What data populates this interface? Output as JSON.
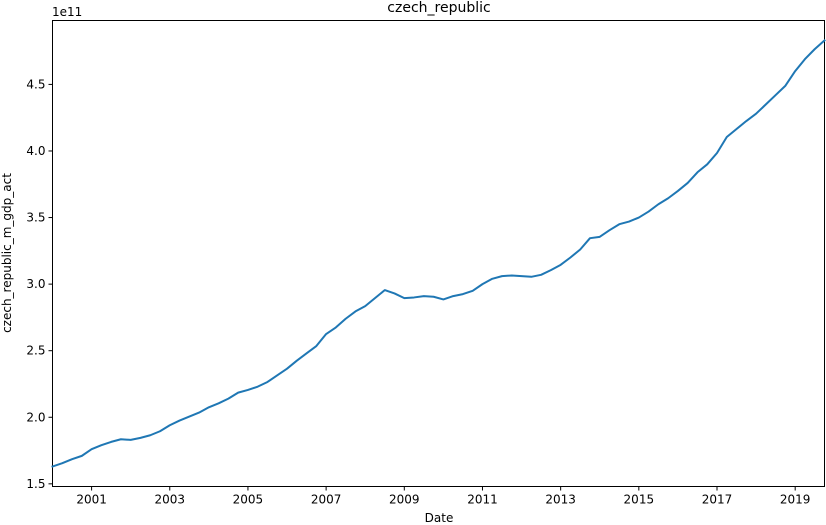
{
  "chart_data": {
    "type": "line",
    "title": "czech_republic",
    "xlabel": "Date",
    "ylabel": "czech_republic_m_gdp_act",
    "y_offset_label": "1e11",
    "y_multiplier": 100000000000.0,
    "xlim": [
      2000.0,
      2019.75
    ],
    "ylim": [
      1.48,
      4.98
    ],
    "x_ticks": [
      2001,
      2003,
      2005,
      2007,
      2009,
      2011,
      2013,
      2015,
      2017,
      2019
    ],
    "y_ticks": [
      1.5,
      2.0,
      2.5,
      3.0,
      3.5,
      4.0,
      4.5
    ],
    "y_tick_labels": [
      "1.5",
      "2.0",
      "2.5",
      "3.0",
      "3.5",
      "4.0",
      "4.5"
    ],
    "grid": false,
    "color": "#1f77b4",
    "series": [
      {
        "x": [
          2000.0,
          2000.25,
          2000.5,
          2000.75,
          2001.0,
          2001.25,
          2001.5,
          2001.75,
          2002.0,
          2002.25,
          2002.5,
          2002.75,
          2003.0,
          2003.25,
          2003.5,
          2003.75,
          2004.0,
          2004.25,
          2004.5,
          2004.75,
          2005.0,
          2005.25,
          2005.5,
          2005.75,
          2006.0,
          2006.25,
          2006.5,
          2006.75,
          2007.0,
          2007.25,
          2007.5,
          2007.75,
          2008.0,
          2008.25,
          2008.5,
          2008.75,
          2009.0,
          2009.25,
          2009.5,
          2009.75,
          2010.0,
          2010.25,
          2010.5,
          2010.75,
          2011.0,
          2011.25,
          2011.5,
          2011.75,
          2012.0,
          2012.25,
          2012.5,
          2012.75,
          2013.0,
          2013.25,
          2013.5,
          2013.75,
          2014.0,
          2014.25,
          2014.5,
          2014.75,
          2015.0,
          2015.25,
          2015.5,
          2015.75,
          2016.0,
          2016.25,
          2016.5,
          2016.75,
          2017.0,
          2017.25,
          2017.5,
          2017.75,
          2018.0,
          2018.25,
          2018.5,
          2018.75,
          2019.0,
          2019.25,
          2019.5,
          2019.75
        ],
        "values": [
          1.63,
          1.655,
          1.685,
          1.71,
          1.76,
          1.79,
          1.815,
          1.835,
          1.83,
          1.845,
          1.865,
          1.895,
          1.94,
          1.975,
          2.005,
          2.035,
          2.075,
          2.105,
          2.14,
          2.185,
          2.205,
          2.23,
          2.265,
          2.315,
          2.365,
          2.425,
          2.48,
          2.535,
          2.625,
          2.675,
          2.74,
          2.795,
          2.835,
          2.895,
          2.955,
          2.93,
          2.895,
          2.9,
          2.91,
          2.905,
          2.885,
          2.91,
          2.925,
          2.95,
          3.0,
          3.04,
          3.06,
          3.065,
          3.06,
          3.055,
          3.07,
          3.105,
          3.145,
          3.2,
          3.26,
          3.345,
          3.355,
          3.405,
          3.45,
          3.47,
          3.5,
          3.545,
          3.6,
          3.645,
          3.7,
          3.76,
          3.84,
          3.9,
          3.985,
          4.105,
          4.165,
          4.225,
          4.28,
          4.35,
          4.42,
          4.49,
          4.6,
          4.69,
          4.765,
          4.83
        ]
      }
    ]
  }
}
